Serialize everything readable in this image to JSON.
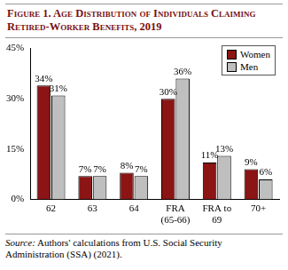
{
  "chart_data": {
    "type": "bar",
    "title": "Figure 1. Age Distribution of Individuals Claiming Retired-Worker Benefits, 2019",
    "source": "Source: Authors' calculations from U.S. Social Security Administration (SSA) (2021).",
    "categories": [
      [
        "62"
      ],
      [
        "63"
      ],
      [
        "64"
      ],
      [
        "FRA",
        "(65-66)"
      ],
      [
        "FRA to",
        "69"
      ],
      [
        "70+"
      ]
    ],
    "series": [
      {
        "name": "Women",
        "color": "#8b1414",
        "values": [
          34,
          7,
          8,
          30,
          11,
          9
        ],
        "value_labels": [
          "34%",
          "7%",
          "8%",
          "30%",
          "11%",
          "9%"
        ]
      },
      {
        "name": "Men",
        "color": "#bfbfbf",
        "values": [
          31,
          7,
          7,
          36,
          13,
          6
        ],
        "value_labels": [
          "31%",
          "7%",
          "7%",
          "36%",
          "13%",
          "6%"
        ]
      }
    ],
    "ylim": [
      0,
      45
    ],
    "yticks": [
      {
        "value": 0,
        "label": "0%"
      },
      {
        "value": 15,
        "label": "15%"
      },
      {
        "value": 30,
        "label": "30%"
      },
      {
        "value": 45,
        "label": "45%"
      }
    ],
    "grid": false,
    "legend": "top-right",
    "data_labels": true
  }
}
